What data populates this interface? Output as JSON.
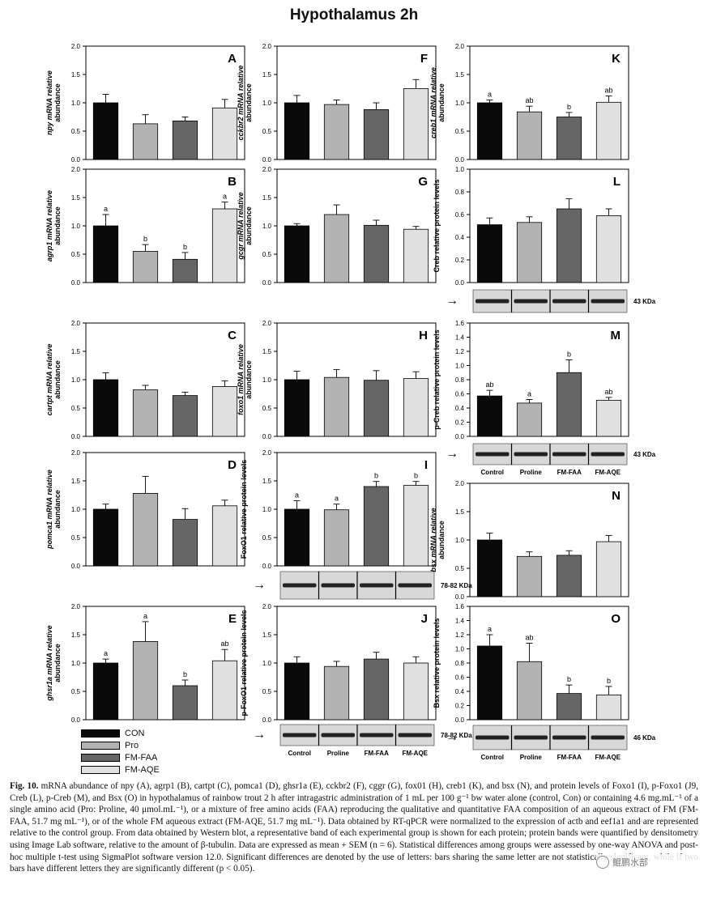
{
  "figure_title": "Hypothalamus 2h",
  "colors": {
    "CON": "#0a0a0a",
    "Pro": "#b3b3b3",
    "FM-FAA": "#666666",
    "FM-AQE": "#e0e0e0"
  },
  "legend": [
    {
      "label": "CON",
      "color": "#0a0a0a"
    },
    {
      "label": "Pro",
      "color": "#b3b3b3"
    },
    {
      "label": "FM-FAA",
      "color": "#666666"
    },
    {
      "label": "FM-AQE",
      "color": "#e0e0e0"
    }
  ],
  "blot_group_labels": [
    "Control",
    "Proline",
    "FM-FAA",
    "FM-AQE"
  ],
  "chart_data": [
    {
      "id": "A",
      "type": "bar",
      "ylabel": [
        "npy mRNA relative",
        "abundance"
      ],
      "ylim": [
        0,
        2
      ],
      "yticks": [
        "0.0",
        "0.5",
        "1.0",
        "1.5",
        "2.0"
      ],
      "categories": [
        "CON",
        "Pro",
        "FM-FAA",
        "FM-AQE"
      ],
      "values": [
        1.0,
        0.63,
        0.68,
        0.91
      ],
      "errors": [
        0.15,
        0.16,
        0.07,
        0.15
      ],
      "letters": [
        "",
        "",
        "",
        ""
      ]
    },
    {
      "id": "B",
      "type": "bar",
      "ylabel": [
        "agrp1 mRNA relative",
        "abundance"
      ],
      "ylim": [
        0,
        2
      ],
      "yticks": [
        "0.0",
        "0.5",
        "1.0",
        "1.5",
        "2.0"
      ],
      "categories": [
        "CON",
        "Pro",
        "FM-FAA",
        "FM-AQE"
      ],
      "values": [
        1.0,
        0.55,
        0.41,
        1.3
      ],
      "errors": [
        0.2,
        0.12,
        0.12,
        0.12
      ],
      "letters": [
        "a",
        "b",
        "b",
        "a"
      ]
    },
    {
      "id": "C",
      "type": "bar",
      "ylabel": [
        "cartpt mRNA relative",
        "abundance"
      ],
      "ylim": [
        0,
        2
      ],
      "yticks": [
        "0.0",
        "0.5",
        "1.0",
        "1.5",
        "2.0"
      ],
      "categories": [
        "CON",
        "Pro",
        "FM-FAA",
        "FM-AQE"
      ],
      "values": [
        1.0,
        0.82,
        0.72,
        0.88
      ],
      "errors": [
        0.12,
        0.08,
        0.06,
        0.1
      ],
      "letters": [
        "",
        "",
        "",
        ""
      ]
    },
    {
      "id": "D",
      "type": "bar",
      "ylabel": [
        "pomca1 mRNA relative",
        "abundance"
      ],
      "ylim": [
        0,
        2
      ],
      "yticks": [
        "0.0",
        "0.5",
        "1.0",
        "1.5",
        "2.0"
      ],
      "categories": [
        "CON",
        "Pro",
        "FM-FAA",
        "FM-AQE"
      ],
      "values": [
        1.0,
        1.28,
        0.82,
        1.06
      ],
      "errors": [
        0.09,
        0.3,
        0.19,
        0.1
      ],
      "letters": [
        "",
        "",
        "",
        ""
      ]
    },
    {
      "id": "E",
      "type": "bar",
      "ylabel": [
        "ghsr1a mRNA relative",
        "abundance"
      ],
      "ylim": [
        0,
        2
      ],
      "yticks": [
        "0.0",
        "0.5",
        "1.0",
        "1.5",
        "2.0"
      ],
      "categories": [
        "CON",
        "Pro",
        "FM-FAA",
        "FM-AQE"
      ],
      "values": [
        1.0,
        1.38,
        0.6,
        1.04
      ],
      "errors": [
        0.07,
        0.35,
        0.1,
        0.2
      ],
      "letters": [
        "a",
        "a",
        "b",
        "ab"
      ]
    },
    {
      "id": "F",
      "type": "bar",
      "ylabel": [
        "cckbr2 mRNA relative",
        "abundance"
      ],
      "ylim": [
        0,
        2
      ],
      "yticks": [
        "0.0",
        "0.5",
        "1.0",
        "1.5",
        "2.0"
      ],
      "categories": [
        "CON",
        "Pro",
        "FM-FAA",
        "FM-AQE"
      ],
      "values": [
        1.0,
        0.97,
        0.88,
        1.25
      ],
      "errors": [
        0.13,
        0.08,
        0.12,
        0.16
      ],
      "letters": [
        "",
        "",
        "",
        ""
      ]
    },
    {
      "id": "G",
      "type": "bar",
      "ylabel": [
        "gcgr mRNA relative",
        "abundance"
      ],
      "ylim": [
        0,
        2
      ],
      "yticks": [
        "0.0",
        "0.5",
        "1.0",
        "1.5",
        "2.0"
      ],
      "categories": [
        "CON",
        "Pro",
        "FM-FAA",
        "FM-AQE"
      ],
      "values": [
        1.0,
        1.2,
        1.01,
        0.94
      ],
      "errors": [
        0.04,
        0.17,
        0.09,
        0.05
      ],
      "letters": [
        "",
        "",
        "",
        ""
      ]
    },
    {
      "id": "H",
      "type": "bar",
      "ylabel": [
        "foxo1 mRNA relative",
        "abundance"
      ],
      "ylim": [
        0,
        2
      ],
      "yticks": [
        "0.0",
        "0.5",
        "1.0",
        "1.5",
        "2.0"
      ],
      "categories": [
        "CON",
        "Pro",
        "FM-FAA",
        "FM-AQE"
      ],
      "values": [
        1.0,
        1.04,
        0.99,
        1.02
      ],
      "errors": [
        0.15,
        0.14,
        0.17,
        0.12
      ],
      "letters": [
        "",
        "",
        "",
        ""
      ]
    },
    {
      "id": "I",
      "type": "bar",
      "ylabel": [
        "FoxO1 relative protein levels"
      ],
      "ylim": [
        0,
        2
      ],
      "yticks": [
        "0.0",
        "0.5",
        "1.0",
        "1.5",
        "2.0"
      ],
      "categories": [
        "CON",
        "Pro",
        "FM-FAA",
        "FM-AQE"
      ],
      "values": [
        1.0,
        0.99,
        1.4,
        1.42
      ],
      "errors": [
        0.15,
        0.1,
        0.09,
        0.07
      ],
      "letters": [
        "a",
        "a",
        "b",
        "b"
      ],
      "blot_kda": "78-82 KDa"
    },
    {
      "id": "J",
      "type": "bar",
      "ylabel": [
        "p-FoxO1 relative protein levels"
      ],
      "ylim": [
        0,
        2
      ],
      "yticks": [
        "0.0",
        "0.5",
        "1.0",
        "1.5",
        "2.0"
      ],
      "categories": [
        "CON",
        "Pro",
        "FM-FAA",
        "FM-AQE"
      ],
      "values": [
        1.0,
        0.94,
        1.07,
        1.0
      ],
      "errors": [
        0.11,
        0.09,
        0.12,
        0.11
      ],
      "letters": [
        "",
        "",
        "",
        ""
      ],
      "blot_kda": "78-82 KDa"
    },
    {
      "id": "K",
      "type": "bar",
      "ylabel": [
        "creb1 mRNA relative",
        "abundance"
      ],
      "ylim": [
        0,
        2
      ],
      "yticks": [
        "0.0",
        "0.5",
        "1.0",
        "1.5",
        "2.0"
      ],
      "categories": [
        "CON",
        "Pro",
        "FM-FAA",
        "FM-AQE"
      ],
      "values": [
        1.0,
        0.84,
        0.75,
        1.01
      ],
      "errors": [
        0.05,
        0.1,
        0.08,
        0.11
      ],
      "letters": [
        "a",
        "ab",
        "b",
        "ab"
      ]
    },
    {
      "id": "L",
      "type": "bar",
      "ylabel": [
        "Creb relative protein levels"
      ],
      "ylim": [
        0,
        1
      ],
      "yticks": [
        "0.0",
        "0.2",
        "0.4",
        "0.6",
        "0.8",
        "1.0"
      ],
      "categories": [
        "CON",
        "Pro",
        "FM-FAA",
        "FM-AQE"
      ],
      "values": [
        0.51,
        0.53,
        0.65,
        0.59
      ],
      "errors": [
        0.06,
        0.05,
        0.09,
        0.06
      ],
      "letters": [
        "",
        "",
        "",
        ""
      ],
      "blot_kda": "43 KDa"
    },
    {
      "id": "M",
      "type": "bar",
      "ylabel": [
        "p-Creb relative protein levels"
      ],
      "ylim": [
        0,
        1.6
      ],
      "yticks": [
        "0.0",
        "0.2",
        "0.4",
        "0.6",
        "0.8",
        "1.0",
        "1.2",
        "1.4",
        "1.6"
      ],
      "categories": [
        "CON",
        "Pro",
        "FM-FAA",
        "FM-AQE"
      ],
      "values": [
        0.57,
        0.47,
        0.9,
        0.51
      ],
      "errors": [
        0.08,
        0.05,
        0.18,
        0.04
      ],
      "letters": [
        "ab",
        "a",
        "b",
        "ab"
      ],
      "blot_kda": "43 KDa"
    },
    {
      "id": "N",
      "type": "bar",
      "ylabel": [
        "bsx mRNA relative",
        "abundance"
      ],
      "ylim": [
        0,
        2
      ],
      "yticks": [
        "0.0",
        "0.5",
        "1.0",
        "1.5",
        "2.0"
      ],
      "categories": [
        "CON",
        "Pro",
        "FM-FAA",
        "FM-AQE"
      ],
      "values": [
        1.0,
        0.71,
        0.73,
        0.97
      ],
      "errors": [
        0.12,
        0.08,
        0.08,
        0.11
      ],
      "letters": [
        "",
        "",
        "",
        ""
      ]
    },
    {
      "id": "O",
      "type": "bar",
      "ylabel": [
        "Bsx relative protein levels"
      ],
      "ylim": [
        0,
        1.6
      ],
      "yticks": [
        "0.0",
        "0.2",
        "0.4",
        "0.6",
        "0.8",
        "1.0",
        "1.2",
        "1.4",
        "1.6"
      ],
      "categories": [
        "CON",
        "Pro",
        "FM-FAA",
        "FM-AQE"
      ],
      "values": [
        1.04,
        0.82,
        0.37,
        0.35
      ],
      "errors": [
        0.16,
        0.26,
        0.12,
        0.12
      ],
      "letters": [
        "a",
        "ab",
        "b",
        "b"
      ],
      "blot_kda": "46 KDa"
    }
  ],
  "caption": {
    "label": "Fig. 10.",
    "text": "mRNA abundance of npy (A), agrp1 (B), cartpt (C), pomca1 (D), ghsr1a (E), cckbr2 (F), cggr (G), fox01 (H), creb1 (K), and bsx (N), and protein levels of Foxo1 (I), p-Foxo1 (J9, Creb (L), p-Creb (M), and Bsx (O) in hypothalamus of rainbow trout 2 h after intragastric administration of 1 mL per 100 g⁻¹ bw water alone (control, Con) or containing 4.6 mg.mL⁻¹ of a single amino acid (Pro: Proline, 40 μmol.mL⁻¹), or a mixture of free amino acids (FAA) reproducing the qualitative and quantitative FAA composition of an aqueous extract of FM (FM-FAA, 51.7 mg mL⁻¹), or of the whole FM aqueous extract (FM-AQE, 51.7 mg mL⁻¹). Data obtained by RT-qPCR were normalized to the expression of actb and eef1a1 and are represented relative to the control group. From data obtained by Western blot, a representative band of each experimental group is shown for each protein; protein bands were quantified by densitometry using Image Lab software, relative to the amount of β-tubulin. Data are expressed as mean + SEM (n = 6). Statistical differences among groups were assessed by one-way ANOVA and post-hoc multiple t-test using SigmaPlot software version 12.0. Significant differences are denoted by the use of letters: bars sharing the same letter are not statistically significant, while if two bars have different letters they are significantly different (p < 0.05)."
  },
  "watermark": "鲲鹏水部"
}
